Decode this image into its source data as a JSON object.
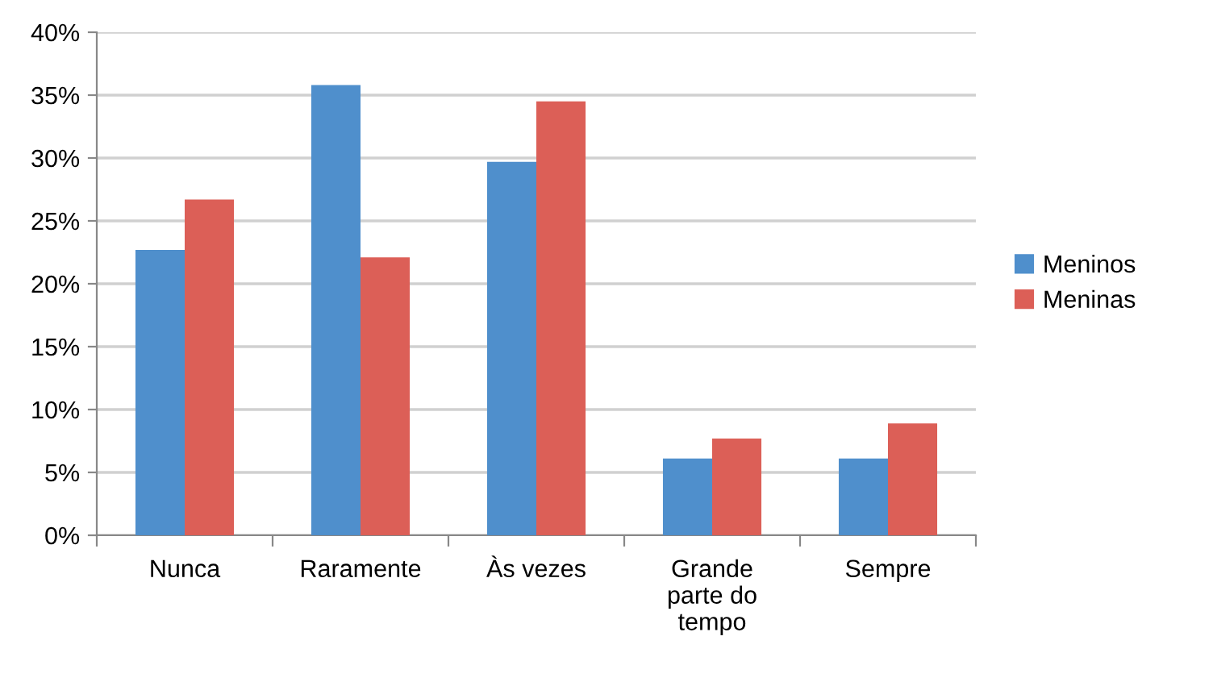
{
  "chart_data": {
    "type": "bar",
    "categories": [
      "Nunca",
      "Raramente",
      "Às vezes",
      "Grande\nparte do\ntempo",
      "Sempre"
    ],
    "series": [
      {
        "name": "Meninos",
        "color": "#4f8fcc",
        "values": [
          22.7,
          35.8,
          29.7,
          6.1,
          6.1
        ]
      },
      {
        "name": "Meninas",
        "color": "#dc5f57",
        "values": [
          26.7,
          22.1,
          34.5,
          7.7,
          8.9
        ]
      }
    ],
    "ylim": [
      0,
      40
    ],
    "yticks": [
      {
        "value": 0,
        "label": "0%"
      },
      {
        "value": 5,
        "label": "5%"
      },
      {
        "value": 10,
        "label": "10%"
      },
      {
        "value": 15,
        "label": "15%"
      },
      {
        "value": 20,
        "label": "20%"
      },
      {
        "value": 25,
        "label": "25%"
      },
      {
        "value": 30,
        "label": "30%"
      },
      {
        "value": 35,
        "label": "35%"
      },
      {
        "value": 40,
        "label": "40%"
      }
    ],
    "grid": "y",
    "legend": "right"
  }
}
